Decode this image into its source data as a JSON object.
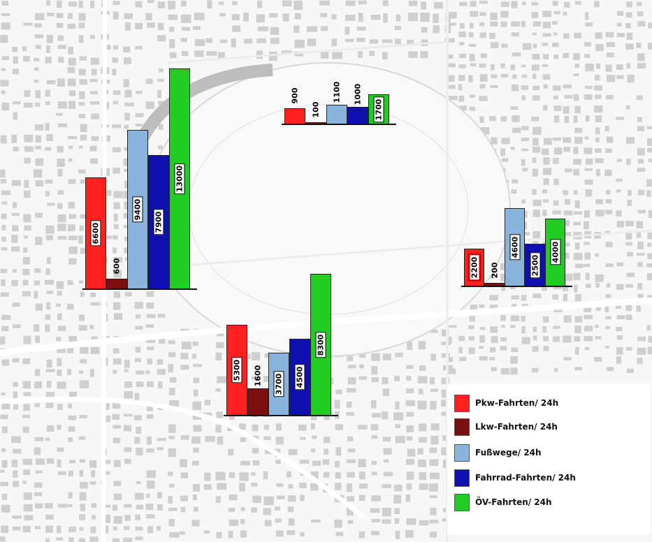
{
  "colors": {
    "pkw": "#ff2020",
    "lkw": "#7a1010",
    "fuss": "#8ab4dc",
    "fahrrad": "#1010b0",
    "oev": "#22cc22",
    "map_ground": "#f7f7f7",
    "map_blocks": "#cfcfcf",
    "map_roads": "#ffffff"
  },
  "categories": [
    "Pkw",
    "Lkw",
    "Fußwege",
    "Fahrrad",
    "ÖV"
  ],
  "legend": [
    {
      "key": "pkw",
      "label": "Pkw-Fahrten/ 24h"
    },
    {
      "key": "lkw",
      "label": "Lkw-Fahrten/ 24h"
    },
    {
      "key": "fuss",
      "label": "Fußwege/ 24h"
    },
    {
      "key": "fahrrad",
      "label": "Fahrrad-Fahrten/ 24h"
    },
    {
      "key": "oev",
      "label": "ÖV-Fahrten/ 24h"
    }
  ],
  "chart_data": [
    {
      "type": "bar",
      "location": "west",
      "categories": [
        "Pkw",
        "Lkw",
        "Fußwege",
        "Fahrrad",
        "ÖV"
      ],
      "values": [
        6600,
        600,
        9400,
        7900,
        13000
      ],
      "labels": [
        "6600",
        "600",
        "9400",
        "7900",
        "13000"
      ]
    },
    {
      "type": "bar",
      "location": "north",
      "categories": [
        "Pkw",
        "Lkw",
        "Fußwege",
        "Fahrrad",
        "ÖV"
      ],
      "values": [
        900,
        100,
        1100,
        1000,
        1700
      ],
      "labels": [
        "900",
        "100",
        "1100",
        "1000",
        "1700"
      ]
    },
    {
      "type": "bar",
      "location": "east",
      "categories": [
        "Pkw",
        "Lkw",
        "Fußwege",
        "Fahrrad",
        "ÖV"
      ],
      "values": [
        2200,
        200,
        4600,
        2500,
        4000
      ],
      "labels": [
        "2200",
        "200",
        "4600",
        "2500",
        "4000"
      ]
    },
    {
      "type": "bar",
      "location": "south",
      "categories": [
        "Pkw",
        "Lkw",
        "Fußwege",
        "Fahrrad",
        "ÖV"
      ],
      "values": [
        5300,
        1600,
        3700,
        4500,
        8300
      ],
      "labels": [
        "5300",
        "1600",
        "3700",
        "4500",
        "8300"
      ]
    }
  ]
}
